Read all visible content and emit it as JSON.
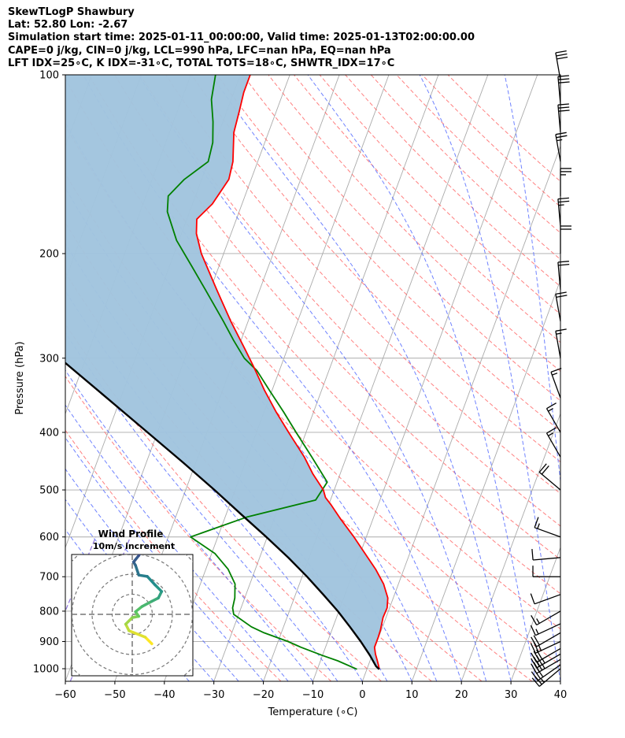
{
  "header": {
    "lines": [
      "SkewTLogP Shawbury",
      "Lat: 52.80   Lon: -2.67",
      "Simulation start time: 2025-01-11_00:00:00, Valid time: 2025-01-13T02:00:00.00",
      "CAPE=0 j/kg, CIN=0 j/kg, LCL=990 hPa, LFC=nan hPa, EQ=nan hPa",
      "LFT IDX=25∘C, K IDX=-31∘C, TOTAL TOTS=18∘C, SHWTR_IDX=17∘C"
    ]
  },
  "chart_data": {
    "type": "line",
    "title": "SkewTLogP Shawbury",
    "xlabel": "Temperature (∘C)",
    "ylabel": "Pressure (hPa)",
    "xlim": [
      -60,
      40
    ],
    "ylim": [
      1050,
      100
    ],
    "xticks": [
      -60,
      -50,
      -40,
      -30,
      -20,
      -10,
      0,
      10,
      20,
      30,
      40
    ],
    "yticks": [
      100,
      200,
      300,
      400,
      500,
      600,
      700,
      800,
      900,
      1000
    ],
    "grid": true,
    "series": [
      {
        "role": "temperature",
        "color": "#ff0000",
        "points": [
          [
            1002,
            2.5
          ],
          [
            995,
            2.3
          ],
          [
            985,
            2.0
          ],
          [
            970,
            1.5
          ],
          [
            945,
            0.6
          ],
          [
            920,
            -0.1
          ],
          [
            905,
            -0.1
          ],
          [
            885,
            -0.1
          ],
          [
            860,
            -0.2
          ],
          [
            820,
            -0.6
          ],
          [
            790,
            -0.5
          ],
          [
            760,
            -1.1
          ],
          [
            720,
            -3.0
          ],
          [
            680,
            -5.7
          ],
          [
            640,
            -9.0
          ],
          [
            600,
            -12.5
          ],
          [
            560,
            -16.5
          ],
          [
            530,
            -19.5
          ],
          [
            515,
            -21.2
          ],
          [
            500,
            -22.2
          ],
          [
            470,
            -25.5
          ],
          [
            440,
            -28.5
          ],
          [
            400,
            -33.5
          ],
          [
            370,
            -37.5
          ],
          [
            340,
            -41.5
          ],
          [
            310,
            -45.5
          ],
          [
            290,
            -48.5
          ],
          [
            260,
            -53.5
          ],
          [
            230,
            -58.7
          ],
          [
            200,
            -64.5
          ],
          [
            185,
            -67.0
          ],
          [
            175,
            -68.0
          ],
          [
            165,
            -66.0
          ],
          [
            150,
            -64.5
          ],
          [
            140,
            -65.0
          ],
          [
            125,
            -67.0
          ],
          [
            115,
            -67.5
          ],
          [
            107,
            -68.0
          ],
          [
            100,
            -68.0
          ]
        ]
      },
      {
        "role": "dewpoint",
        "color": "#008000",
        "points": [
          [
            1002,
            -2.0
          ],
          [
            970,
            -6.5
          ],
          [
            950,
            -10.0
          ],
          [
            920,
            -15.0
          ],
          [
            900,
            -18.0
          ],
          [
            870,
            -23.5
          ],
          [
            850,
            -26.5
          ],
          [
            810,
            -31.0
          ],
          [
            790,
            -31.7
          ],
          [
            760,
            -32.0
          ],
          [
            720,
            -33.0
          ],
          [
            680,
            -35.5
          ],
          [
            640,
            -39.3
          ],
          [
            600,
            -45.5
          ],
          [
            555,
            -35.5
          ],
          [
            520,
            -23.0
          ],
          [
            485,
            -22.0
          ],
          [
            440,
            -27.0
          ],
          [
            400,
            -32.0
          ],
          [
            370,
            -36.0
          ],
          [
            340,
            -40.5
          ],
          [
            315,
            -44.5
          ],
          [
            300,
            -48.0
          ],
          [
            280,
            -51.5
          ],
          [
            260,
            -55.0
          ],
          [
            230,
            -61.0
          ],
          [
            210,
            -65.5
          ],
          [
            190,
            -70.5
          ],
          [
            170,
            -74.5
          ],
          [
            160,
            -75.5
          ],
          [
            150,
            -73.5
          ],
          [
            140,
            -70.0
          ],
          [
            130,
            -70.5
          ],
          [
            120,
            -72.0
          ],
          [
            110,
            -74.0
          ],
          [
            100,
            -75.0
          ]
        ]
      },
      {
        "role": "parcel",
        "color": "#000000",
        "points": [
          [
            1002,
            2.5
          ],
          [
            990,
            1.6
          ],
          [
            950,
            -0.4
          ],
          [
            900,
            -3.3
          ],
          [
            850,
            -6.6
          ],
          [
            800,
            -10.2
          ],
          [
            750,
            -14.4
          ],
          [
            700,
            -19.0
          ],
          [
            650,
            -24.2
          ],
          [
            600,
            -30.2
          ],
          [
            550,
            -36.9
          ],
          [
            500,
            -44.2
          ],
          [
            450,
            -52.5
          ],
          [
            400,
            -62.0
          ],
          [
            350,
            -72.8
          ],
          [
            300,
            -85.3
          ],
          [
            250,
            -100.0
          ],
          [
            200,
            -117.7
          ],
          [
            150,
            -140.5
          ],
          [
            100,
            -172.0
          ]
        ]
      }
    ],
    "shaded_region": {
      "color": "#a1c4de",
      "between": [
        "parcel",
        "temperature"
      ]
    },
    "skew_per_decade_c": 44.4,
    "reference_lines": {
      "isotherm_color": "#aaaaaa",
      "dry_adiabat_color": "#ff5555",
      "moist_adiabat_color": "#4b63ff",
      "mixing_ratio_color": "#7b5cd6"
    },
    "wind_barbs": [
      {
        "p": 1000,
        "dir": 230,
        "kt": 25
      },
      {
        "p": 985,
        "dir": 235,
        "kt": 30
      },
      {
        "p": 965,
        "dir": 240,
        "kt": 35
      },
      {
        "p": 945,
        "dir": 240,
        "kt": 35
      },
      {
        "p": 925,
        "dir": 240,
        "kt": 30
      },
      {
        "p": 900,
        "dir": 245,
        "kt": 25
      },
      {
        "p": 870,
        "dir": 240,
        "kt": 20
      },
      {
        "p": 840,
        "dir": 245,
        "kt": 15
      },
      {
        "p": 800,
        "dir": 240,
        "kt": 15
      },
      {
        "p": 750,
        "dir": 250,
        "kt": 10
      },
      {
        "p": 700,
        "dir": 270,
        "kt": 10
      },
      {
        "p": 650,
        "dir": 265,
        "kt": 10
      },
      {
        "p": 600,
        "dir": 290,
        "kt": 15
      },
      {
        "p": 500,
        "dir": 310,
        "kt": 20
      },
      {
        "p": 440,
        "dir": 330,
        "kt": 15
      },
      {
        "p": 400,
        "dir": 330,
        "kt": 15
      },
      {
        "p": 350,
        "dir": 340,
        "kt": 15
      },
      {
        "p": 300,
        "dir": 350,
        "kt": 15
      },
      {
        "p": 260,
        "dir": 350,
        "kt": 20
      },
      {
        "p": 230,
        "dir": 355,
        "kt": 20
      },
      {
        "p": 200,
        "dir": 0,
        "kt": 20
      },
      {
        "p": 180,
        "dir": 355,
        "kt": 25
      },
      {
        "p": 160,
        "dir": 0,
        "kt": 25
      },
      {
        "p": 140,
        "dir": 350,
        "kt": 25
      },
      {
        "p": 125,
        "dir": 355,
        "kt": 30
      },
      {
        "p": 112,
        "dir": 355,
        "kt": 30
      },
      {
        "p": 102,
        "dir": 350,
        "kt": 30
      }
    ],
    "hodograph": {
      "title": "Wind Profile",
      "subtitle": "10m/s increment",
      "colormap": [
        "#440154",
        "#3b528b",
        "#21918c",
        "#5ec962",
        "#fde725"
      ],
      "points_from_surface": [
        [
          3,
          -4.5
        ],
        [
          2,
          -3.5
        ],
        [
          -0.5,
          -2.5
        ],
        [
          -1,
          -1.5
        ],
        [
          0,
          -0.5
        ],
        [
          1,
          -0.3
        ],
        [
          0.5,
          0.4
        ],
        [
          1.5,
          1.2
        ],
        [
          3,
          2
        ],
        [
          4,
          2.5
        ],
        [
          4.5,
          3.5
        ],
        [
          3.5,
          4.5
        ],
        [
          2.3,
          5.8
        ],
        [
          1,
          6
        ],
        [
          0.5,
          7.5
        ],
        [
          0.2,
          8
        ],
        [
          1,
          9
        ],
        [
          1.5,
          10
        ],
        [
          2,
          11
        ],
        [
          1.2,
          12
        ],
        [
          0.5,
          12.5
        ],
        [
          1,
          13
        ],
        [
          2,
          13.2
        ]
      ]
    }
  }
}
